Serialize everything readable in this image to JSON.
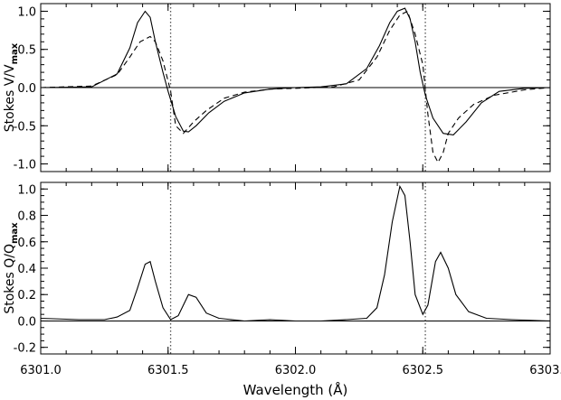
{
  "chart_data": [
    {
      "type": "line",
      "ylabel": "Stokes V/V",
      "ylabel_sub": "max",
      "xlim": [
        6301.0,
        6303.0
      ],
      "ylim": [
        -1.1,
        1.1
      ],
      "yticks": [
        -1.0,
        -0.5,
        0.0,
        0.5,
        1.0
      ],
      "ytick_labels": [
        "-1.0",
        "-0.5",
        "0.0",
        "0.5",
        "1.0"
      ],
      "zero_line": 0.0,
      "reference_lines": [
        6301.51,
        6302.51
      ],
      "series": [
        {
          "style": "solid",
          "x": [
            6301.0,
            6301.2,
            6301.3,
            6301.35,
            6301.38,
            6301.41,
            6301.43,
            6301.45,
            6301.48,
            6301.5,
            6301.53,
            6301.56,
            6301.58,
            6301.61,
            6301.66,
            6301.72,
            6301.8,
            6301.9,
            6302.0,
            6302.1,
            6302.2,
            6302.28,
            6302.33,
            6302.37,
            6302.4,
            6302.43,
            6302.45,
            6302.47,
            6302.49,
            6302.51,
            6302.54,
            6302.58,
            6302.62,
            6302.67,
            6302.73,
            6302.8,
            6302.9,
            6303.0
          ],
          "y": [
            0.0,
            0.01,
            0.18,
            0.52,
            0.85,
            1.0,
            0.92,
            0.6,
            0.2,
            -0.05,
            -0.38,
            -0.57,
            -0.58,
            -0.5,
            -0.33,
            -0.18,
            -0.07,
            -0.02,
            0.0,
            0.01,
            0.05,
            0.25,
            0.55,
            0.85,
            1.0,
            1.04,
            0.9,
            0.6,
            0.2,
            -0.1,
            -0.4,
            -0.6,
            -0.62,
            -0.45,
            -0.2,
            -0.05,
            -0.01,
            0.0
          ]
        },
        {
          "style": "dashed",
          "x": [
            6301.0,
            6301.2,
            6301.3,
            6301.35,
            6301.39,
            6301.43,
            6301.45,
            6301.48,
            6301.51,
            6301.53,
            6301.56,
            6301.6,
            6301.65,
            6301.72,
            6301.8,
            6301.9,
            6302.0,
            6302.15,
            6302.25,
            6302.32,
            6302.37,
            6302.41,
            6302.44,
            6302.47,
            6302.5,
            6302.52,
            6302.54,
            6302.56,
            6302.58,
            6302.6,
            6302.64,
            6302.7,
            6302.78,
            6302.9,
            6303.0
          ],
          "y": [
            0.0,
            0.02,
            0.17,
            0.4,
            0.6,
            0.67,
            0.6,
            0.35,
            -0.05,
            -0.5,
            -0.6,
            -0.45,
            -0.3,
            -0.14,
            -0.06,
            -0.02,
            -0.01,
            0.01,
            0.1,
            0.4,
            0.75,
            0.95,
            1.0,
            0.7,
            0.3,
            -0.35,
            -0.85,
            -0.98,
            -0.85,
            -0.6,
            -0.4,
            -0.22,
            -0.1,
            -0.03,
            0.0
          ]
        }
      ]
    },
    {
      "type": "line",
      "ylabel": "Stokes Q/Q",
      "ylabel_sub": "max",
      "xlabel": "Wavelength (Å)",
      "xlim": [
        6301.0,
        6303.0
      ],
      "ylim": [
        -0.25,
        1.05
      ],
      "yticks": [
        -0.2,
        0.0,
        0.2,
        0.4,
        0.6,
        0.8,
        1.0
      ],
      "ytick_labels": [
        "-0.2",
        "0.0",
        "0.2",
        "0.4",
        "0.6",
        "0.8",
        "1.0"
      ],
      "xticks": [
        6301.0,
        6301.5,
        6302.0,
        6302.5,
        6303.0
      ],
      "xtick_labels": [
        "6301.0",
        "6301.5",
        "6302.0",
        "6302.5",
        "6303.0"
      ],
      "zero_line": 0.0,
      "reference_lines": [
        6301.51,
        6302.51
      ],
      "series": [
        {
          "style": "solid",
          "x": [
            6301.0,
            6301.15,
            6301.25,
            6301.3,
            6301.35,
            6301.38,
            6301.41,
            6301.43,
            6301.45,
            6301.48,
            6301.51,
            6301.54,
            6301.58,
            6301.61,
            6301.65,
            6301.7,
            6301.8,
            6301.9,
            6302.0,
            6302.1,
            6302.2,
            6302.28,
            6302.32,
            6302.35,
            6302.38,
            6302.41,
            6302.43,
            6302.45,
            6302.47,
            6302.5,
            6302.52,
            6302.55,
            6302.57,
            6302.6,
            6302.63,
            6302.68,
            6302.75,
            6302.85,
            6303.0
          ],
          "y": [
            0.02,
            0.01,
            0.01,
            0.03,
            0.08,
            0.25,
            0.43,
            0.45,
            0.3,
            0.1,
            0.01,
            0.04,
            0.2,
            0.18,
            0.06,
            0.02,
            0.0,
            0.01,
            0.0,
            0.0,
            0.01,
            0.02,
            0.1,
            0.35,
            0.75,
            1.02,
            0.95,
            0.6,
            0.2,
            0.05,
            0.12,
            0.45,
            0.52,
            0.4,
            0.2,
            0.07,
            0.02,
            0.01,
            0.0
          ]
        }
      ]
    }
  ]
}
